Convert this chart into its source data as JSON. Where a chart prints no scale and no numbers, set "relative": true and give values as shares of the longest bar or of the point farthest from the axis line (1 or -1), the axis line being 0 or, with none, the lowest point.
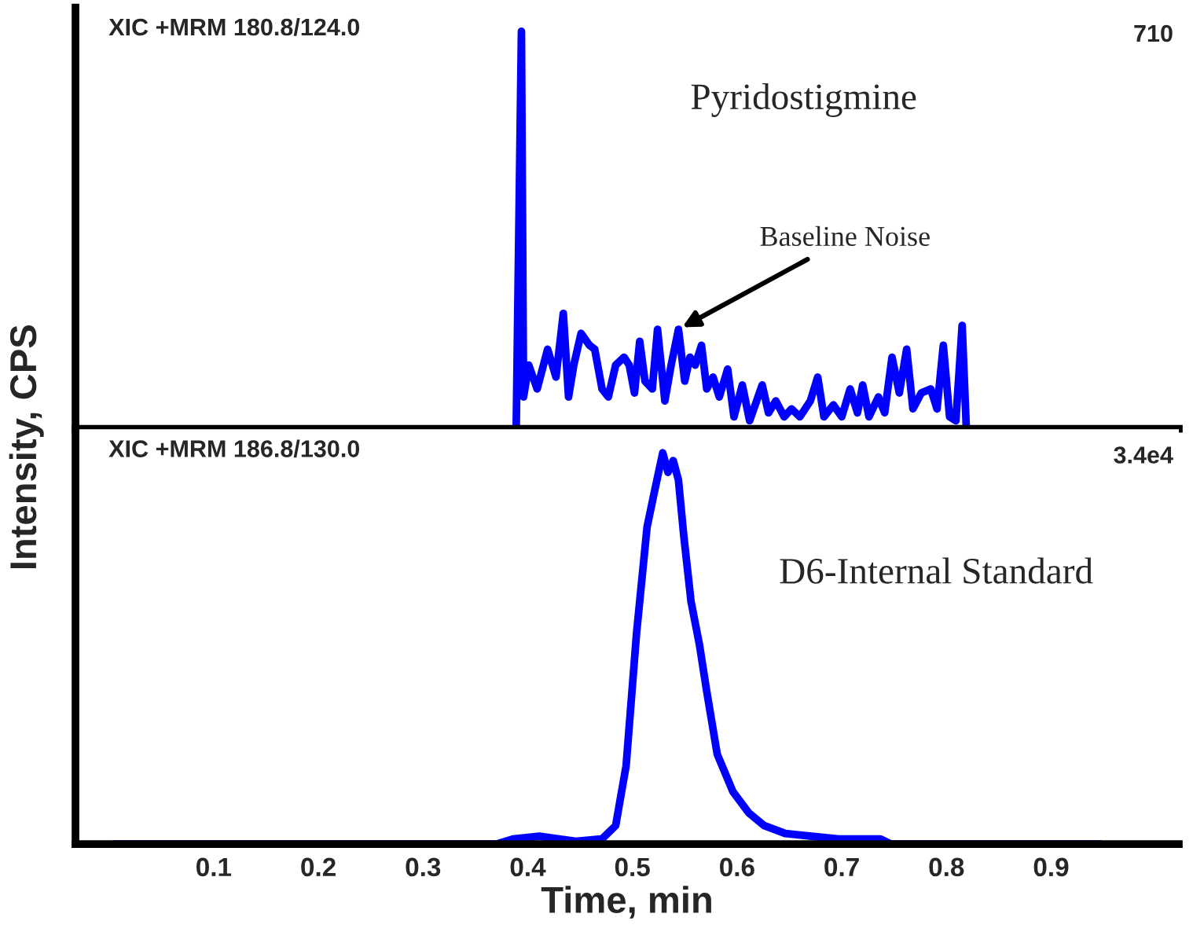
{
  "chart_data": [
    {
      "type": "line",
      "title": "XIC +MRM 180.8/124.0",
      "ylabel": "Intensity, CPS",
      "relative": true,
      "xlim": [
        -0.032,
        1.022
      ],
      "tick_labels": false,
      "annotations": [
        "Pyridostigmine",
        {
          "text": "Baseline Noise",
          "x": 0.544,
          "y": 0.25
        },
        "710"
      ],
      "series": [
        {
          "color": "#0000ff",
          "x": [
            0.389,
            0.394,
            0.396,
            0.401,
            0.409,
            0.419,
            0.427,
            0.434,
            0.439,
            0.444,
            0.451,
            0.459,
            0.464,
            0.471,
            0.477,
            0.484,
            0.492,
            0.497,
            0.502,
            0.507,
            0.512,
            0.519,
            0.524,
            0.531,
            0.537,
            0.544,
            0.55,
            0.555,
            0.56,
            0.566,
            0.571,
            0.577,
            0.583,
            0.591,
            0.597,
            0.605,
            0.612,
            0.624,
            0.63,
            0.637,
            0.645,
            0.652,
            0.66,
            0.67,
            0.677,
            0.683,
            0.692,
            0.7,
            0.708,
            0.715,
            0.72,
            0.726,
            0.735,
            0.741,
            0.748,
            0.755,
            0.762,
            0.768,
            0.776,
            0.785,
            0.791,
            0.797,
            0.803,
            0.809,
            0.815,
            0.819
          ],
          "values": [
            0,
            1.0,
            0.08,
            0.16,
            0.1,
            0.2,
            0.13,
            0.29,
            0.08,
            0.16,
            0.24,
            0.21,
            0.2,
            0.1,
            0.08,
            0.16,
            0.18,
            0.16,
            0.09,
            0.22,
            0.12,
            0.1,
            0.25,
            0.07,
            0.16,
            0.25,
            0.12,
            0.18,
            0.16,
            0.21,
            0.1,
            0.13,
            0.08,
            0.15,
            0.03,
            0.11,
            0.02,
            0.11,
            0.04,
            0.07,
            0.03,
            0.05,
            0.03,
            0.07,
            0.13,
            0.03,
            0.06,
            0.03,
            0.1,
            0.04,
            0.11,
            0.03,
            0.08,
            0.04,
            0.18,
            0.09,
            0.2,
            0.05,
            0.09,
            0.1,
            0.05,
            0.21,
            0.03,
            0.02,
            0.26,
            0
          ]
        }
      ]
    },
    {
      "type": "line",
      "title": "XIC +MRM 186.8/130.0",
      "xlabel": "Time, min",
      "relative": true,
      "xlim": [
        -0.032,
        1.022
      ],
      "xticks": [
        0.1,
        0.2,
        0.3,
        0.4,
        0.5,
        0.6,
        0.7,
        0.8,
        0.9
      ],
      "tick_labels": "x",
      "annotations": [
        "D6-Internal Standard",
        "3.4e4"
      ],
      "series": [
        {
          "color": "#0000ff",
          "x": [
            0.005,
            0.37,
            0.386,
            0.411,
            0.446,
            0.471,
            0.484,
            0.494,
            0.504,
            0.514,
            0.521,
            0.529,
            0.534,
            0.539,
            0.544,
            0.549,
            0.556,
            0.564,
            0.571,
            0.581,
            0.596,
            0.611,
            0.626,
            0.646,
            0.671,
            0.697,
            0.737,
            0.747,
            0.947
          ],
          "values": [
            0,
            0,
            0.013,
            0.02,
            0.007,
            0.013,
            0.047,
            0.2,
            0.54,
            0.81,
            0.9,
            1.0,
            0.95,
            0.98,
            0.93,
            0.79,
            0.62,
            0.51,
            0.39,
            0.23,
            0.134,
            0.08,
            0.047,
            0.027,
            0.02,
            0.013,
            0.013,
            0,
            0
          ]
        }
      ]
    }
  ]
}
